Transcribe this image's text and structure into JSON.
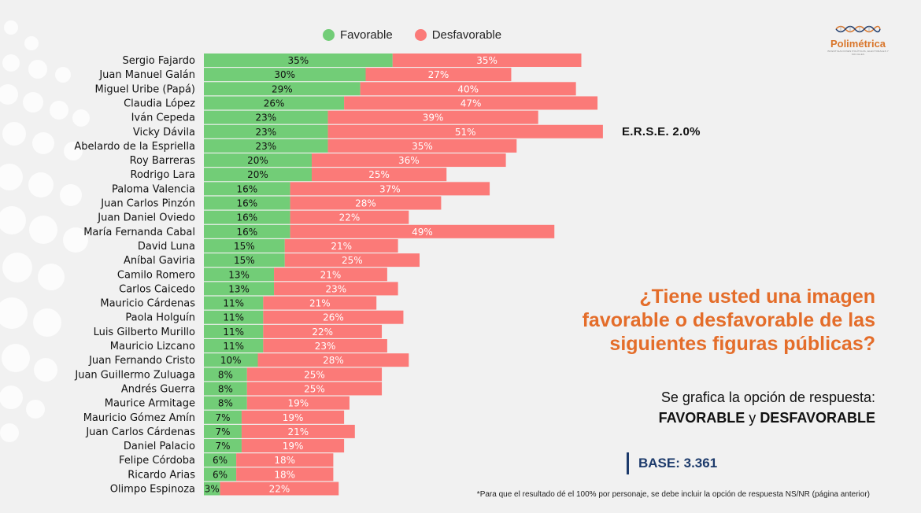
{
  "legend": {
    "favorable": "Favorable",
    "desfavorable": "Desfavorable"
  },
  "colors": {
    "favorable": "#72cd77",
    "desfavorable": "#fb7a78",
    "accent": "#e46d2a",
    "base": "#1c3a6b"
  },
  "logo": {
    "name": "Polimétrica",
    "tagline": "INVESTIGACIONES POLÍTICAS, ELECTORALES Y SOCIALES"
  },
  "erse": "E.R.S.E. 2.0%",
  "question": "¿Tiene usted una imagen favorable o desfavorable de las siguientes figuras públicas?",
  "subtitle": {
    "line1": "Se grafica la opción de respuesta:",
    "bold1": "FAVORABLE",
    "connector": " y ",
    "bold2": "DESFAVORABLE"
  },
  "base": "BASE: 3.361",
  "footnote": "*Para que el resultado dé el 100% por personaje, se debe incluir la opción de respuesta NS/NR (página anterior)",
  "chart_data": {
    "type": "bar",
    "orientation": "horizontal",
    "stacked": true,
    "categories": [
      "Sergio Fajardo",
      "Juan Manuel Galán",
      "Miguel Uribe (Papá)",
      "Claudia López",
      "Iván Cepeda",
      "Vicky Dávila",
      "Abelardo de la Espriella",
      "Roy Barreras",
      "Rodrigo Lara",
      "Paloma Valencia",
      "Juan Carlos Pinzón",
      "Juan Daniel Oviedo",
      "María Fernanda Cabal",
      "David Luna",
      "Aníbal Gaviria",
      "Camilo Romero",
      "Carlos Caicedo",
      "Mauricio Cárdenas",
      "Paola Holguín",
      "Luis Gilberto Murillo",
      "Mauricio Lizcano",
      "Juan Fernando Cristo",
      "Juan Guillermo Zuluaga",
      "Andrés Guerra",
      "Maurice Armitage",
      "Mauricio Gómez Amín",
      "Juan Carlos Cárdenas",
      "Daniel Palacio",
      "Felipe Córdoba",
      "Ricardo Arias",
      "Olimpo Espinoza"
    ],
    "series": [
      {
        "name": "Favorable",
        "values": [
          35,
          30,
          29,
          26,
          23,
          23,
          23,
          20,
          20,
          16,
          16,
          16,
          16,
          15,
          15,
          13,
          13,
          11,
          11,
          11,
          11,
          10,
          8,
          8,
          8,
          7,
          7,
          7,
          6,
          6,
          3
        ]
      },
      {
        "name": "Desfavorable",
        "values": [
          35,
          27,
          40,
          47,
          39,
          51,
          35,
          36,
          25,
          37,
          28,
          22,
          49,
          21,
          25,
          21,
          23,
          21,
          26,
          22,
          23,
          28,
          25,
          25,
          19,
          19,
          21,
          19,
          18,
          18,
          22
        ]
      }
    ],
    "value_suffix": "%",
    "legend_position": "top",
    "grid": false
  }
}
